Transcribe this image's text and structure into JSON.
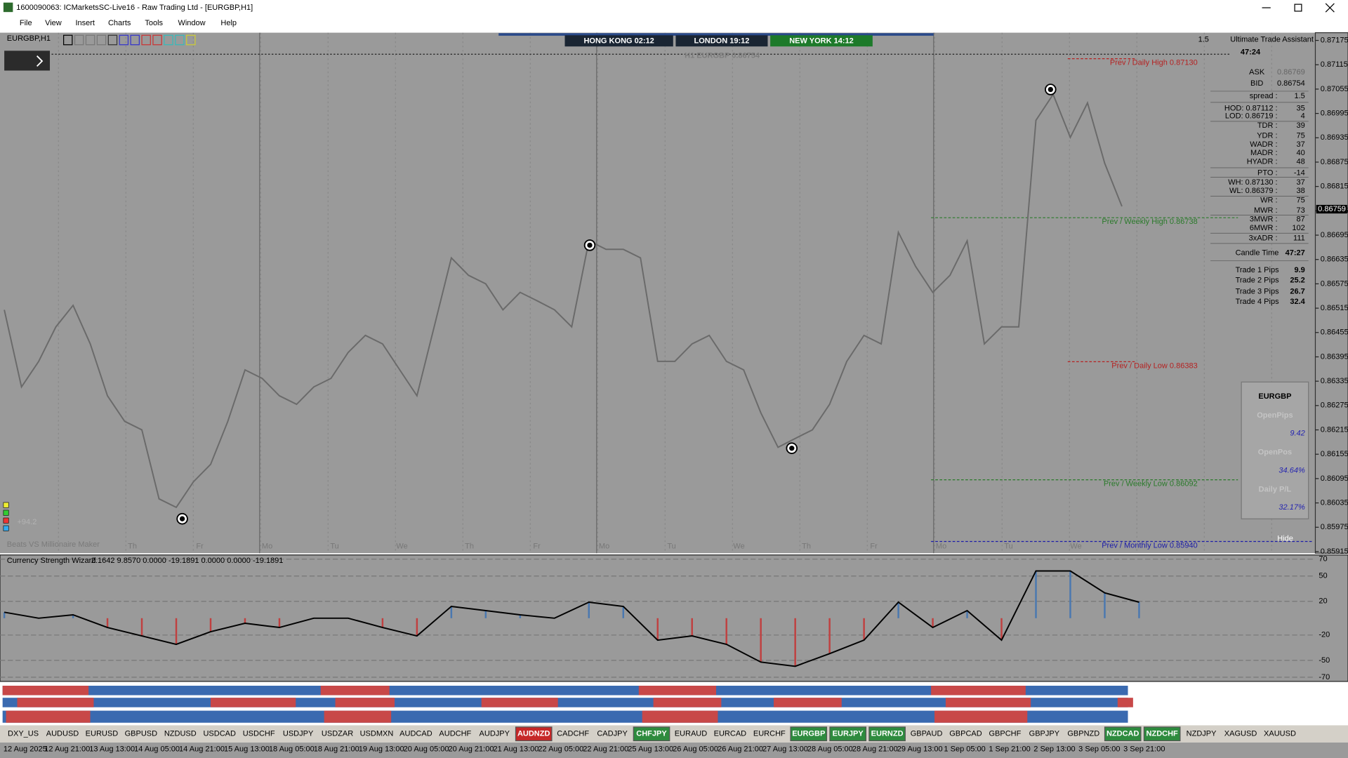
{
  "window": {
    "title": "1600090063: ICMarketsSC-Live16 - Raw Trading Ltd - [EURGBP,H1]",
    "menu": [
      "File",
      "View",
      "Insert",
      "Charts",
      "Tools",
      "Window",
      "Help"
    ]
  },
  "chart": {
    "symbol_label": "EURGBP,H1",
    "sessions": [
      "HONG KONG 02:12",
      "LONDON  19:12",
      "NEW YORK  14:12"
    ],
    "headline": "H1 EURGBP 0.86754",
    "corner_value": "1.5",
    "assistant": "Ultimate Trade Assistant",
    "timer": "47:24",
    "ylim": [
      0.85911,
      0.87194
    ],
    "yticks": [
      0.87175,
      0.87115,
      0.87055,
      0.86995,
      0.86935,
      0.86875,
      0.86815,
      0.86755,
      0.86695,
      0.86635,
      0.86575,
      0.86515,
      0.86455,
      0.86395,
      0.86335,
      0.86275,
      0.86215,
      0.86155,
      0.86095,
      0.86035,
      0.85975,
      0.85915
    ],
    "current_price": 0.86759,
    "prices": [
      0.86511,
      0.86321,
      0.86384,
      0.86469,
      0.86522,
      0.86427,
      0.86299,
      0.86236,
      0.86215,
      0.86045,
      0.86024,
      0.86087,
      0.8613,
      0.86236,
      0.86363,
      0.86342,
      0.86299,
      0.86278,
      0.86321,
      0.86342,
      0.86406,
      0.86448,
      0.86427,
      0.86363,
      0.86299,
      0.86469,
      0.86639,
      0.86596,
      0.86575,
      0.86511,
      0.86554,
      0.86533,
      0.86511,
      0.86469,
      0.86681,
      0.8666,
      0.8666,
      0.86639,
      0.86384,
      0.86384,
      0.86427,
      0.86448,
      0.86384,
      0.86363,
      0.86257,
      0.86172,
      0.86194,
      0.86215,
      0.86278,
      0.86384,
      0.86448,
      0.86427,
      0.86702,
      0.86618,
      0.86554,
      0.86596,
      0.86681,
      0.86427,
      0.86469,
      0.86469,
      0.86978,
      0.87042,
      0.86936,
      0.87021,
      0.86872,
      0.86766
    ],
    "levels": [
      {
        "label": "Prev / Daily High 0.87130",
        "price": 0.8713,
        "color": "#b52222"
      },
      {
        "label": "Prev / Weekly High 0.86738",
        "price": 0.86738,
        "color": "#2a7a2a"
      },
      {
        "label": "Prev / Daily Low 0.86383",
        "price": 0.86383,
        "color": "#b52222"
      },
      {
        "label": "Prev / Weekly Low 0.86092",
        "price": 0.86092,
        "color": "#2a7a2a"
      },
      {
        "label": "Prev / Monthly Low 0.85940",
        "price": 0.8594,
        "color": "#1c1ca8"
      }
    ],
    "days": [
      "Th",
      "Fr",
      "Mo",
      "Tu",
      "We",
      "Th",
      "Fr",
      "Mo",
      "Tu",
      "We",
      "Th",
      "Fr",
      "Mo",
      "Tu",
      "We"
    ],
    "pips": "+94.2",
    "caption": "Beats VS Millionaire Maker",
    "hide": "Hide",
    "panel": [
      [
        "ASK",
        "0.86769"
      ],
      [
        "BID",
        "0.86754"
      ],
      [
        "spread :",
        "1.5"
      ],
      [
        "HOD: 0.87112 :",
        "35"
      ],
      [
        "LOD: 0.86719 :",
        "4"
      ],
      [
        "TDR :",
        "39"
      ],
      [
        "YDR :",
        "75"
      ],
      [
        "WADR :",
        "37"
      ],
      [
        "MADR :",
        "40"
      ],
      [
        "HYADR :",
        "48"
      ],
      [
        "PTO :",
        "-14"
      ],
      [
        "WH: 0.87130 :",
        "37"
      ],
      [
        "WL: 0.86379 :",
        "38"
      ],
      [
        "WR :",
        "75"
      ],
      [
        "MWR :",
        "73"
      ],
      [
        "3MWR :",
        "87"
      ],
      [
        "6MWR :",
        "102"
      ],
      [
        "3xADR :",
        "111"
      ],
      [
        "Candle Time",
        "47:27"
      ],
      [
        "Trade 1 Pips",
        "9.9"
      ],
      [
        "Trade 2 Pips",
        "25.2"
      ],
      [
        "Trade 3 Pips",
        "26.7"
      ],
      [
        "Trade 4 Pips",
        "32.4"
      ]
    ],
    "box": {
      "symbol": "EURGBP",
      "items": [
        [
          "OpenPips",
          "9.42"
        ],
        [
          "OpenPos",
          "34.64%"
        ],
        [
          "Daily P/L",
          "32.17%"
        ]
      ]
    }
  },
  "indicator": {
    "title": "Currency Strength Wizard",
    "readout": "2.1642 9.8570 0.0000 -19.1891 0.0000 0.0000 -19.1891",
    "ylim": [
      -75,
      75
    ],
    "yticks": [
      70,
      50,
      20,
      -20,
      -50,
      -70
    ],
    "values": [
      7,
      0,
      4,
      -11,
      -21,
      -31,
      -16,
      -6,
      -11,
      0,
      0,
      -11,
      -21,
      14,
      9,
      4,
      0,
      19,
      14,
      -26,
      -21,
      -31,
      -52,
      -57,
      -42,
      -26,
      19,
      -11,
      9,
      -26,
      56,
      56,
      30,
      19
    ]
  },
  "symbols": [
    {
      "name": "DXY_US"
    },
    {
      "name": "AUDUSD"
    },
    {
      "name": "EURUSD"
    },
    {
      "name": "GBPUSD"
    },
    {
      "name": "NZDUSD"
    },
    {
      "name": "USDCAD"
    },
    {
      "name": "USDCHF"
    },
    {
      "name": "USDJPY"
    },
    {
      "name": "USDZAR"
    },
    {
      "name": "USDMXN"
    },
    {
      "name": "AUDCAD"
    },
    {
      "name": "AUDCHF"
    },
    {
      "name": "AUDJPY"
    },
    {
      "name": "AUDNZD",
      "color": "#c62828"
    },
    {
      "name": "CADCHF"
    },
    {
      "name": "CADJPY"
    },
    {
      "name": "CHFJPY",
      "color": "#2e8b3e"
    },
    {
      "name": "EURAUD"
    },
    {
      "name": "EURCAD"
    },
    {
      "name": "EURCHF"
    },
    {
      "name": "EURGBP",
      "color": "#2e8b3e"
    },
    {
      "name": "EURJPY",
      "color": "#2e8b3e"
    },
    {
      "name": "EURNZD",
      "color": "#2e8b3e"
    },
    {
      "name": "GBPAUD"
    },
    {
      "name": "GBPCAD"
    },
    {
      "name": "GBPCHF"
    },
    {
      "name": "GBPJPY"
    },
    {
      "name": "GBPNZD"
    },
    {
      "name": "NZDCAD",
      "color": "#2e8b3e"
    },
    {
      "name": "NZDCHF",
      "color": "#2e8b3e"
    },
    {
      "name": "NZDJPY"
    },
    {
      "name": "XAGUSD"
    },
    {
      "name": "XAUUSD"
    }
  ],
  "time_labels": [
    "12 Aug 2025",
    "12 Aug 21:00",
    "13 Aug 13:00",
    "14 Aug 05:00",
    "14 Aug 21:00",
    "15 Aug 13:00",
    "18 Aug 05:00",
    "18 Aug 21:00",
    "19 Aug 13:00",
    "20 Aug 05:00",
    "20 Aug 21:00",
    "21 Aug 13:00",
    "22 Aug 05:00",
    "22 Aug 21:00",
    "25 Aug 13:00",
    "26 Aug 05:00",
    "26 Aug 21:00",
    "27 Aug 13:00",
    "28 Aug 05:00",
    "28 Aug 21:00",
    "29 Aug 13:00",
    "1 Sep 05:00",
    "1 Sep 21:00",
    "2 Sep 13:00",
    "3 Sep 05:00",
    "3 Sep 21:00"
  ]
}
